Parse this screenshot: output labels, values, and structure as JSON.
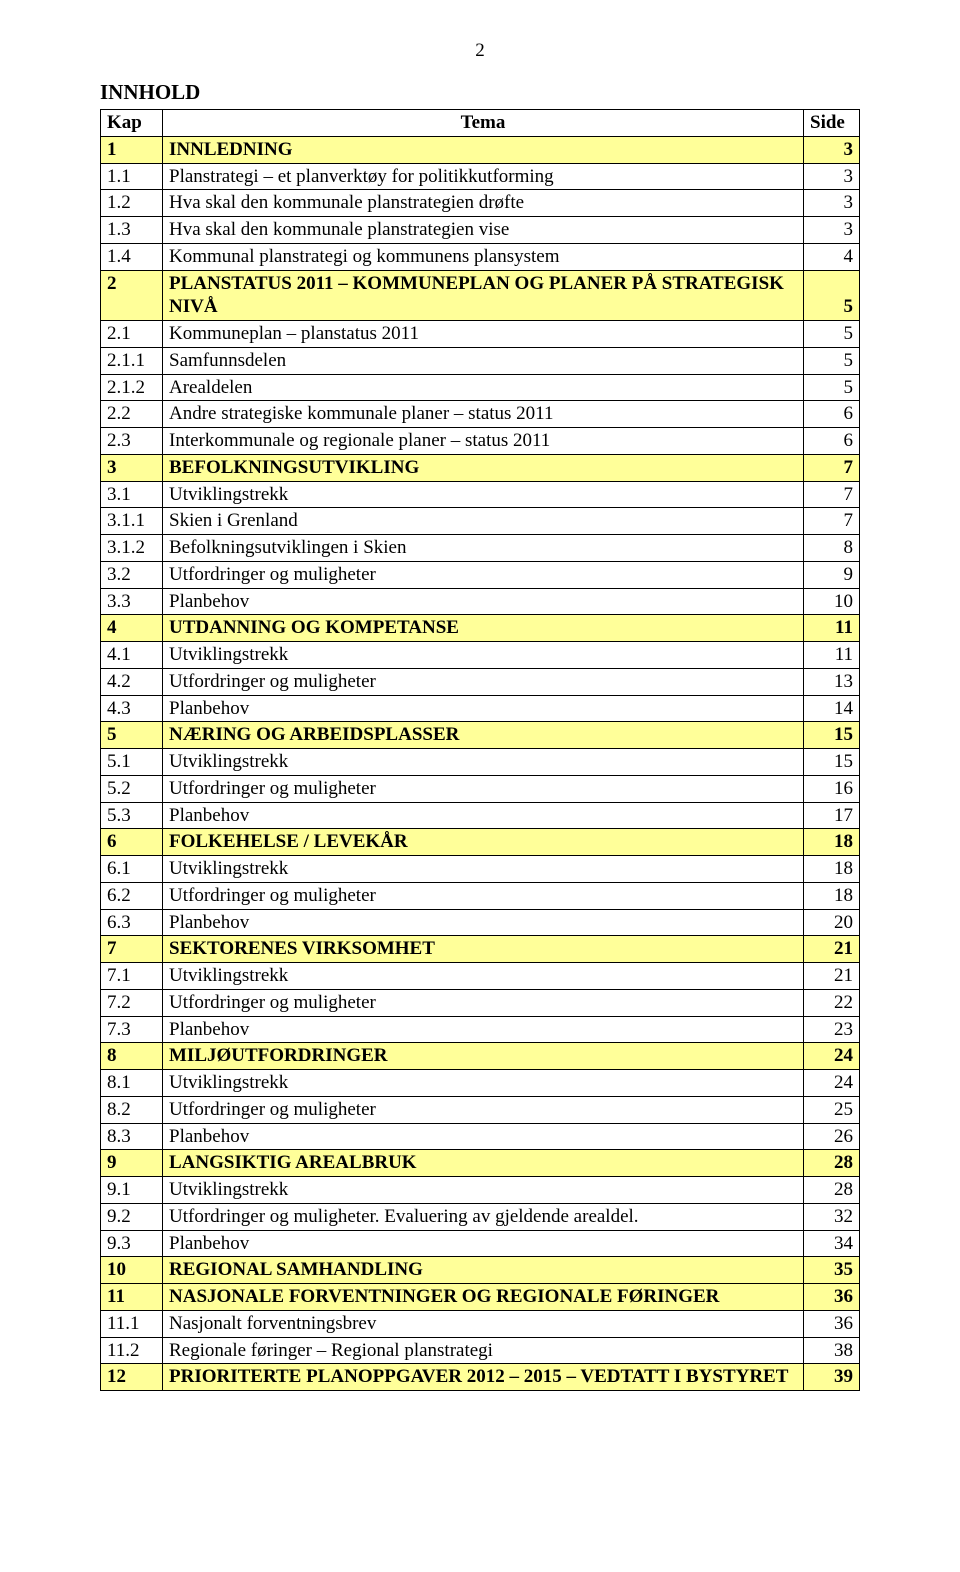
{
  "page_number": "2",
  "doc_title": "INNHOLD",
  "columns": {
    "kap": "Kap",
    "tema": "Tema",
    "side": "Side"
  },
  "styles": {
    "section_bg": "#ffff99",
    "border_color": "#000000",
    "body_bg": "#ffffff",
    "font_family": "Times New Roman",
    "base_fontsize_pt": 14
  },
  "rows": [
    {
      "kap": "1",
      "tema": "INNLEDNING",
      "side": "3",
      "section": true
    },
    {
      "kap": "1.1",
      "tema": "Planstrategi – et planverktøy for politikkutforming",
      "side": "3"
    },
    {
      "kap": "1.2",
      "tema": "Hva skal den kommunale planstrategien drøfte",
      "side": "3"
    },
    {
      "kap": "1.3",
      "tema": "Hva skal den kommunale planstrategien vise",
      "side": "3"
    },
    {
      "kap": "1.4",
      "tema": "Kommunal planstrategi og kommunens plansystem",
      "side": "4"
    },
    {
      "kap": "2",
      "tema": "PLANSTATUS 2011 – KOMMUNEPLAN OG PLANER PÅ STRATEGISK NIVÅ",
      "side": "5",
      "section": true,
      "side_valign_bottom": true
    },
    {
      "kap": "2.1",
      "tema": "Kommuneplan – planstatus 2011",
      "side": "5"
    },
    {
      "kap": "2.1.1",
      "tema": "Samfunnsdelen",
      "side": "5"
    },
    {
      "kap": "2.1.2",
      "tema": "Arealdelen",
      "side": "5"
    },
    {
      "kap": "2.2",
      "tema": "Andre strategiske kommunale planer – status 2011",
      "side": "6"
    },
    {
      "kap": "2.3",
      "tema": "Interkommunale og regionale planer – status 2011",
      "side": "6"
    },
    {
      "kap": "3",
      "tema": "BEFOLKNINGSUTVIKLING",
      "side": "7",
      "section": true
    },
    {
      "kap": "3.1",
      "tema": "Utviklingstrekk",
      "side": "7"
    },
    {
      "kap": "3.1.1",
      "tema": "Skien i Grenland",
      "side": "7"
    },
    {
      "kap": "3.1.2",
      "tema": "Befolkningsutviklingen i Skien",
      "side": "8"
    },
    {
      "kap": "3.2",
      "tema": "Utfordringer og muligheter",
      "side": "9"
    },
    {
      "kap": "3.3",
      "tema": "Planbehov",
      "side": "10"
    },
    {
      "kap": "4",
      "tema": "UTDANNING OG KOMPETANSE",
      "side": "11",
      "section": true
    },
    {
      "kap": "4.1",
      "tema": "Utviklingstrekk",
      "side": "11"
    },
    {
      "kap": "4.2",
      "tema": "Utfordringer og muligheter",
      "side": "13"
    },
    {
      "kap": "4.3",
      "tema": "Planbehov",
      "side": "14"
    },
    {
      "kap": "5",
      "tema": "NÆRING OG ARBEIDSPLASSER",
      "side": "15",
      "section": true
    },
    {
      "kap": "5.1",
      "tema": "Utviklingstrekk",
      "side": "15"
    },
    {
      "kap": "5.2",
      "tema": "Utfordringer og muligheter",
      "side": "16"
    },
    {
      "kap": "5.3",
      "tema": "Planbehov",
      "side": "17"
    },
    {
      "kap": "6",
      "tema": "FOLKEHELSE / LEVEKÅR",
      "side": "18",
      "section": true
    },
    {
      "kap": "6.1",
      "tema": "Utviklingstrekk",
      "side": "18"
    },
    {
      "kap": "6.2",
      "tema": "Utfordringer og muligheter",
      "side": "18"
    },
    {
      "kap": "6.3",
      "tema": "Planbehov",
      "side": "20"
    },
    {
      "kap": "7",
      "tema": "SEKTORENES VIRKSOMHET",
      "side": "21",
      "section": true
    },
    {
      "kap": "7.1",
      "tema": "Utviklingstrekk",
      "side": "21"
    },
    {
      "kap": "7.2",
      "tema": "Utfordringer og muligheter",
      "side": "22"
    },
    {
      "kap": "7.3",
      "tema": "Planbehov",
      "side": "23"
    },
    {
      "kap": "8",
      "tema": "MILJØUTFORDRINGER",
      "side": "24",
      "section": true
    },
    {
      "kap": "8.1",
      "tema": "Utviklingstrekk",
      "side": "24"
    },
    {
      "kap": "8.2",
      "tema": "Utfordringer og muligheter",
      "side": "25"
    },
    {
      "kap": "8.3",
      "tema": "Planbehov",
      "side": "26"
    },
    {
      "kap": "9",
      "tema": "LANGSIKTIG AREALBRUK",
      "side": "28",
      "section": true
    },
    {
      "kap": "9.1",
      "tema": "Utviklingstrekk",
      "side": "28"
    },
    {
      "kap": "9.2",
      "tema": "Utfordringer og muligheter. Evaluering av gjeldende arealdel.",
      "side": "32"
    },
    {
      "kap": "9.3",
      "tema": "Planbehov",
      "side": "34"
    },
    {
      "kap": "10",
      "tema": "REGIONAL SAMHANDLING",
      "side": "35",
      "section": true
    },
    {
      "kap": "11",
      "tema": "NASJONALE FORVENTNINGER OG REGIONALE FØRINGER",
      "side": "36",
      "section": true
    },
    {
      "kap": "11.1",
      "tema": "Nasjonalt forventningsbrev",
      "side": "36"
    },
    {
      "kap": "11.2",
      "tema": "Regionale føringer – Regional planstrategi",
      "side": "38"
    },
    {
      "kap": "12",
      "tema": "PRIORITERTE PLANOPPGAVER 2012 – 2015 – VEDTATT I BYSTYRET",
      "side": "39",
      "section": true,
      "side_valign_bottom": true
    }
  ]
}
